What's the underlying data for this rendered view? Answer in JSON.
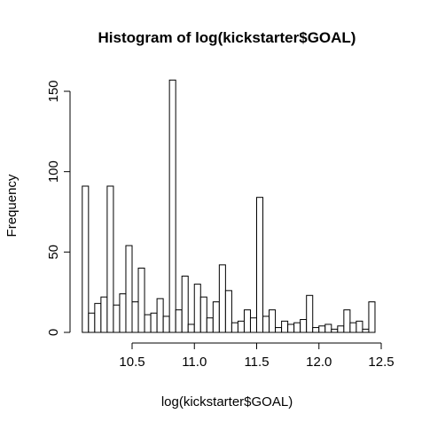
{
  "chart_data": {
    "type": "histogram",
    "title": "Histogram of log(kickstarter$GOAL)",
    "xlabel": "log(kickstarter$GOAL)",
    "ylabel": "Frequency",
    "x_ticks": [
      10.5,
      11.0,
      11.5,
      12.0,
      12.5
    ],
    "x_tick_labels": [
      "10.5",
      "11.0",
      "11.5",
      "12.0",
      "12.5"
    ],
    "y_ticks": [
      0,
      50,
      100,
      150
    ],
    "y_tick_labels": [
      "0",
      "50",
      "100",
      "150"
    ],
    "xlim": [
      10.0,
      12.5
    ],
    "ylim": [
      0,
      160
    ],
    "bin_start": 10.1,
    "bin_width": 0.05,
    "bin_counts": [
      91,
      12,
      18,
      22,
      91,
      17,
      24,
      54,
      19,
      40,
      11,
      12,
      21,
      10,
      157,
      14,
      35,
      5,
      30,
      22,
      9,
      19,
      42,
      26,
      6,
      7,
      14,
      9,
      84,
      10,
      14,
      3,
      7,
      5,
      6,
      8,
      23,
      3,
      4,
      5,
      2,
      4,
      14,
      6,
      7,
      2,
      19
    ],
    "grid": false,
    "bar_fill": "#ffffff",
    "bar_stroke": "#000000"
  }
}
